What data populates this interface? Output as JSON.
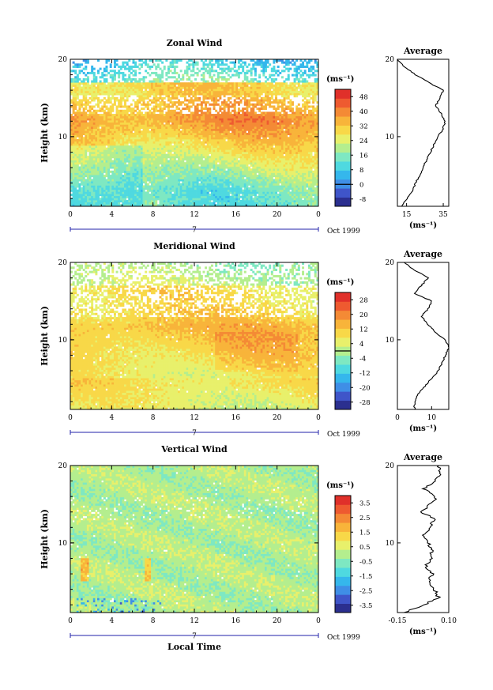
{
  "colors": {
    "scale": [
      "#2b2f8f",
      "#3f55c9",
      "#3f8ee6",
      "#35b7ec",
      "#4fd9e0",
      "#7ee8c2",
      "#b4ee8e",
      "#e8f06b",
      "#f8d848",
      "#f8b43a",
      "#f48a35",
      "#ee5a30",
      "#e0302a"
    ],
    "axis": "#000000",
    "timeline": "#2222aa"
  },
  "figure": {
    "date_label": "Oct 1999",
    "timeline_mid_label": "7",
    "unit_label": "(ms⁻¹)",
    "average_unit_label": "(ms⁻¹)"
  },
  "chart_data": [
    {
      "type": "heatmap",
      "title": "Zonal Wind",
      "xlabel": "",
      "ylabel": "Height (km)",
      "x_ticks": [
        "0",
        "4",
        "8",
        "12",
        "16",
        "20",
        "0"
      ],
      "y_ticks": [
        "10",
        "20"
      ],
      "ylim": [
        1,
        20
      ],
      "xlim": [
        0,
        24
      ],
      "colorbar_unit": "(ms⁻¹)",
      "colorbar_ticks": [
        "-8",
        "0",
        "8",
        "16",
        "24",
        "32",
        "40",
        "48"
      ],
      "colorbar_range": [
        -12,
        52
      ],
      "zero_line": 0,
      "profile_height": [
        1,
        2,
        3,
        4,
        5,
        6,
        7,
        8,
        9,
        10,
        11,
        12,
        13,
        14,
        15,
        16,
        17,
        18,
        19,
        20
      ],
      "profile_values": [
        12,
        15,
        18,
        20,
        22,
        24,
        26,
        28,
        30,
        32,
        35,
        36,
        34,
        31,
        33,
        35,
        27,
        20,
        14,
        10
      ]
    },
    {
      "type": "heatmap",
      "title": "Meridional Wind",
      "xlabel": "",
      "ylabel": "Height (km)",
      "x_ticks": [
        "0",
        "4",
        "8",
        "12",
        "16",
        "20",
        "0"
      ],
      "y_ticks": [
        "10",
        "20"
      ],
      "ylim": [
        1,
        20
      ],
      "xlim": [
        0,
        24
      ],
      "colorbar_unit": "(ms⁻¹)",
      "colorbar_ticks": [
        "-28",
        "-20",
        "-12",
        "-4",
        "4",
        "12",
        "20",
        "28"
      ],
      "colorbar_range": [
        -32,
        32
      ],
      "zero_line": 0,
      "profile_height": [
        1,
        2,
        3,
        4,
        5,
        6,
        7,
        8,
        9,
        10,
        11,
        12,
        13,
        14,
        15,
        16,
        17,
        18,
        19,
        20
      ],
      "profile_values": [
        5,
        5,
        6,
        8,
        10,
        12,
        13,
        14,
        15,
        14,
        11,
        9,
        7,
        9,
        10,
        5,
        7,
        9,
        5,
        2
      ]
    },
    {
      "type": "heatmap",
      "title": "Vertical Wind",
      "xlabel": "Local Time",
      "ylabel": "Height (km)",
      "x_ticks": [
        "0",
        "4",
        "8",
        "12",
        "16",
        "20",
        "0"
      ],
      "y_ticks": [
        "10",
        "20"
      ],
      "ylim": [
        1,
        20
      ],
      "xlim": [
        0,
        24
      ],
      "colorbar_unit": "(ms⁻¹)",
      "colorbar_ticks": [
        "-3.5",
        "-2.5",
        "-1.5",
        "-0.5",
        "0.5",
        "1.5",
        "2.5",
        "3.5"
      ],
      "colorbar_range": [
        -4,
        4
      ],
      "zero_line": null,
      "profile_height": [
        1,
        2,
        3,
        4,
        5,
        6,
        7,
        8,
        9,
        10,
        11,
        12,
        13,
        14,
        15,
        16,
        17,
        18,
        19,
        20
      ],
      "profile_values": [
        -0.12,
        -0.02,
        0.05,
        0.03,
        0.0,
        0.02,
        -0.01,
        0.01,
        0.02,
        0.0,
        -0.02,
        0.01,
        0.03,
        -0.03,
        0.01,
        0.04,
        -0.02,
        0.03,
        0.06,
        0.05
      ]
    }
  ],
  "average_panels": [
    {
      "title": "Average",
      "x_ticks": [
        "15",
        "35"
      ],
      "xlim": [
        10,
        38
      ],
      "y_ticks": [
        "10",
        "20"
      ]
    },
    {
      "title": "Average",
      "x_ticks": [
        "0",
        "10"
      ],
      "xlim": [
        0,
        15
      ],
      "y_ticks": [
        "10",
        "20"
      ]
    },
    {
      "title": "Average",
      "x_ticks": [
        "-0.15",
        "0.10"
      ],
      "xlim": [
        -0.15,
        0.1
      ],
      "y_ticks": [
        "10",
        "20"
      ]
    }
  ]
}
